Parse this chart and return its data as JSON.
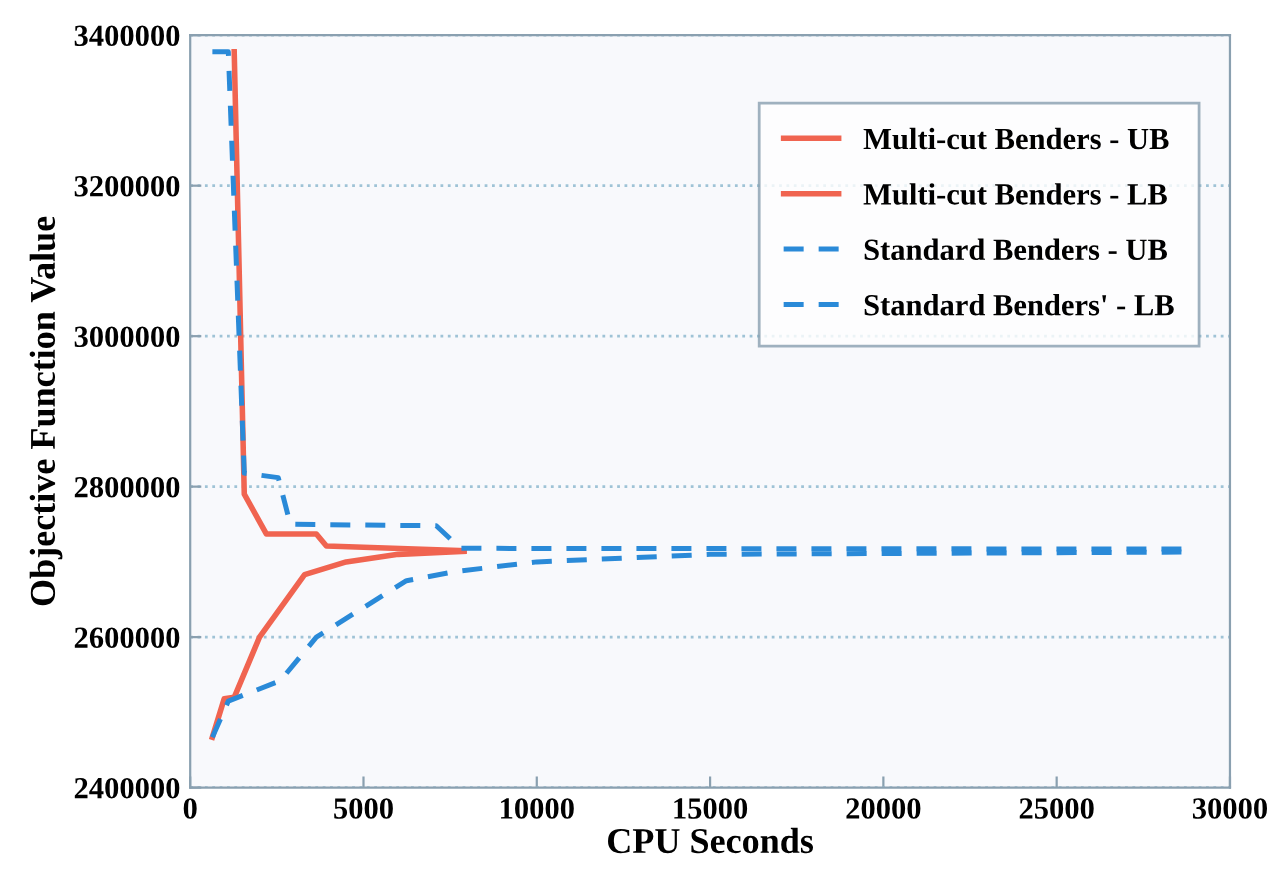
{
  "chart_data": {
    "type": "line",
    "xlabel": "CPU Seconds",
    "ylabel": "Objective Function Value",
    "xlim": [
      0,
      30000
    ],
    "xticks": [
      0,
      5000,
      10000,
      15000,
      20000,
      25000,
      30000
    ],
    "ylim": [
      2400000,
      3400000
    ],
    "yticks": [
      2400000,
      2600000,
      2800000,
      3000000,
      3200000,
      3400000
    ],
    "grid": "y",
    "legend": "top right",
    "marker": "none",
    "series": [
      {
        "name": "Multi-cut Benders - UB",
        "color": "#f06450",
        "line_style": "solid",
        "x": [
          1270,
          1560,
          2200,
          3640,
          3930,
          7900
        ],
        "values": [
          3378000,
          2790000,
          2737000,
          2737000,
          2721000,
          2715000
        ]
      },
      {
        "name": "Multi-cut Benders - LB",
        "color": "#f06450",
        "line_style": "solid",
        "x": [
          640,
          980,
          1270,
          2000,
          3300,
          4500,
          6000,
          7900
        ],
        "values": [
          2467000,
          2518000,
          2520000,
          2600000,
          2683000,
          2700000,
          2710000,
          2714000
        ]
      },
      {
        "name": "Standard Benders - UB",
        "color": "#2a8ad8",
        "line_style": "dashed",
        "x": [
          640,
          1100,
          1560,
          2540,
          2890,
          7100,
          7800,
          28600
        ],
        "values": [
          3378000,
          3378000,
          2818000,
          2812000,
          2750000,
          2748000,
          2718000,
          2717000
        ]
      },
      {
        "name": "Standard Benders' - LB",
        "color": "#2a8ad8",
        "line_style": "dashed",
        "x": [
          640,
          1100,
          2600,
          3640,
          6240,
          7630,
          10000,
          15000,
          28600
        ],
        "values": [
          2467000,
          2515000,
          2542000,
          2600000,
          2675000,
          2687000,
          2700000,
          2710000,
          2713000
        ]
      }
    ]
  }
}
